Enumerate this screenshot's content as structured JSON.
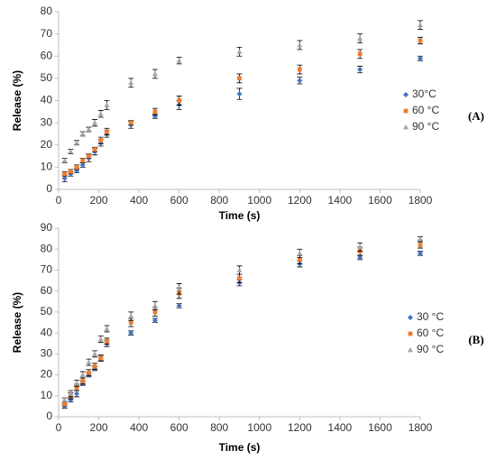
{
  "chart_data": [
    {
      "type": "scatter",
      "panel_label": "(A)",
      "x_label": "Time (s)",
      "y_label": "Release (%)",
      "x": [
        30,
        60,
        90,
        120,
        150,
        180,
        210,
        240,
        360,
        480,
        600,
        900,
        1200,
        1500,
        1800
      ],
      "xlim": [
        0,
        1800
      ],
      "xticks": [
        0,
        200,
        400,
        600,
        800,
        1000,
        1200,
        1400,
        1600,
        1800
      ],
      "ylim": [
        0,
        80
      ],
      "yticks": [
        0,
        10,
        20,
        30,
        40,
        50,
        60,
        70,
        80
      ],
      "series": [
        {
          "name": "30°C",
          "color": "#4472c4",
          "marker": "diamond",
          "values": [
            5,
            7,
            8.5,
            11,
            14,
            17,
            21,
            25,
            29,
            33,
            38,
            43,
            49,
            54,
            59
          ],
          "errors": [
            1.5,
            1,
            1,
            1,
            1.5,
            1.5,
            1.5,
            1.5,
            1.5,
            1,
            2,
            2.5,
            1.5,
            1.5,
            1
          ]
        },
        {
          "name": "60 °C",
          "color": "#ed7d31",
          "marker": "square",
          "values": [
            7,
            8,
            10,
            13,
            15,
            18,
            22,
            26,
            30,
            35,
            40,
            50,
            54,
            61,
            67
          ],
          "errors": [
            1,
            1,
            1,
            1,
            1,
            1,
            1.5,
            1.5,
            1,
            1.5,
            2,
            2,
            2,
            2,
            1.5
          ]
        },
        {
          "name": "90 °C",
          "color": "#a5a5a5",
          "marker": "triangle",
          "values": [
            13,
            17,
            21,
            25,
            27,
            30,
            34,
            38,
            48,
            52,
            58,
            62,
            65,
            68,
            74
          ],
          "errors": [
            1,
            1,
            1,
            1,
            1,
            1.5,
            1.5,
            2,
            2,
            2,
            1.5,
            2,
            2,
            2,
            2
          ]
        }
      ],
      "legend": "right"
    },
    {
      "type": "scatter",
      "panel_label": "(B)",
      "x_label": "Time (s)",
      "y_label": "Release (%)",
      "x": [
        30,
        60,
        90,
        120,
        150,
        180,
        210,
        240,
        360,
        480,
        600,
        900,
        1200,
        1500,
        1800
      ],
      "xlim": [
        0,
        1800
      ],
      "xticks": [
        0,
        200,
        400,
        600,
        800,
        1000,
        1200,
        1400,
        1600,
        1800
      ],
      "ylim": [
        0,
        90
      ],
      "yticks": [
        0,
        10,
        20,
        30,
        40,
        50,
        60,
        70,
        80,
        90
      ],
      "series": [
        {
          "name": "30 °C",
          "color": "#4472c4",
          "marker": "diamond",
          "values": [
            5,
            8,
            11,
            16,
            20,
            23,
            28,
            35,
            40,
            46,
            53,
            64,
            73,
            76,
            78
          ],
          "errors": [
            1,
            1,
            1.5,
            1,
            1,
            1,
            1,
            1.5,
            1,
            1,
            1,
            1.5,
            1.5,
            1,
            1
          ]
        },
        {
          "name": "60 °C",
          "color": "#ed7d31",
          "marker": "square",
          "values": [
            6,
            10,
            14,
            17,
            21,
            24,
            28,
            36,
            45,
            50,
            59,
            66,
            75,
            79,
            82
          ],
          "errors": [
            1,
            1.5,
            1.5,
            1.5,
            1.5,
            1.5,
            1.5,
            1.5,
            2,
            2,
            2.5,
            2,
            2,
            2,
            1.5
          ]
        },
        {
          "name": "90 °C",
          "color": "#a5a5a5",
          "marker": "triangle",
          "values": [
            8,
            11,
            16,
            20,
            26,
            30,
            37,
            42,
            48,
            53,
            61,
            70,
            78,
            81,
            85
          ],
          "errors": [
            1,
            1.5,
            1.5,
            1.5,
            1.5,
            1.5,
            1.5,
            1.5,
            2,
            2,
            2.5,
            2,
            2,
            2,
            1
          ]
        }
      ],
      "legend": "right"
    }
  ]
}
